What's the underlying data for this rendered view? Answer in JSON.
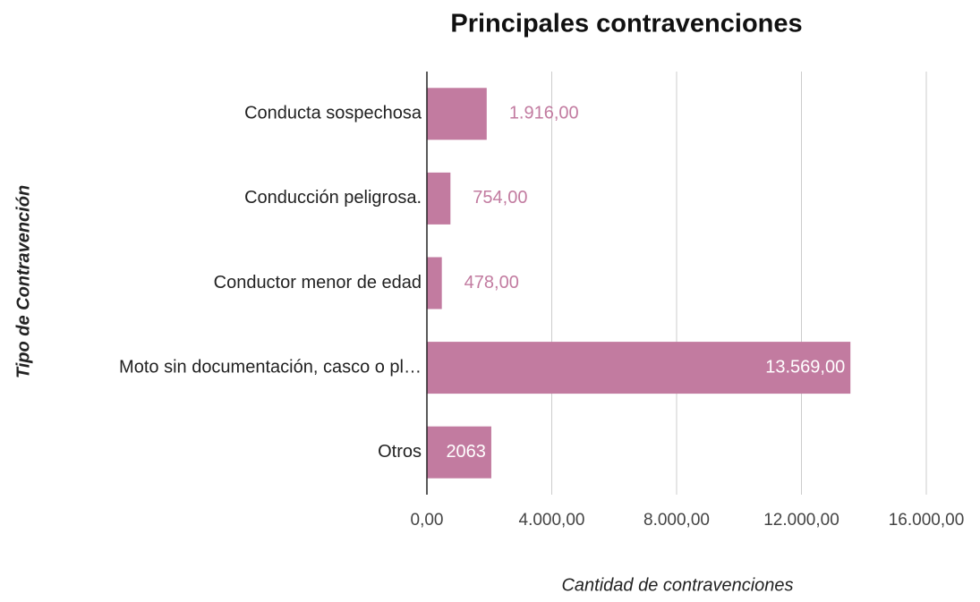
{
  "chart_data": {
    "type": "bar",
    "orientation": "horizontal",
    "title": "Principales contravenciones",
    "categories": [
      "Conducta sospechosa",
      "Conducción peligrosa.",
      "Conductor menor de edad",
      "Moto sin documentación, casco o pl…",
      "Otros"
    ],
    "values": [
      1916,
      754,
      478,
      13569,
      2063
    ],
    "value_labels": [
      "1.916,00",
      "754,00",
      "478,00",
      "13.569,00",
      "2063"
    ],
    "color": "#c27ba0",
    "xlabel": "Cantidad de contravenciones",
    "ylabel": "Tipo de Contravención",
    "xlim": [
      0,
      16000
    ],
    "xticks": [
      {
        "value": 0,
        "label": "0,00"
      },
      {
        "value": 4000,
        "label": "4.000,00"
      },
      {
        "value": 8000,
        "label": "8.000,00"
      },
      {
        "value": 12000,
        "label": "12.000,00"
      },
      {
        "value": 16000,
        "label": "16.000,00"
      }
    ],
    "grid": true
  }
}
